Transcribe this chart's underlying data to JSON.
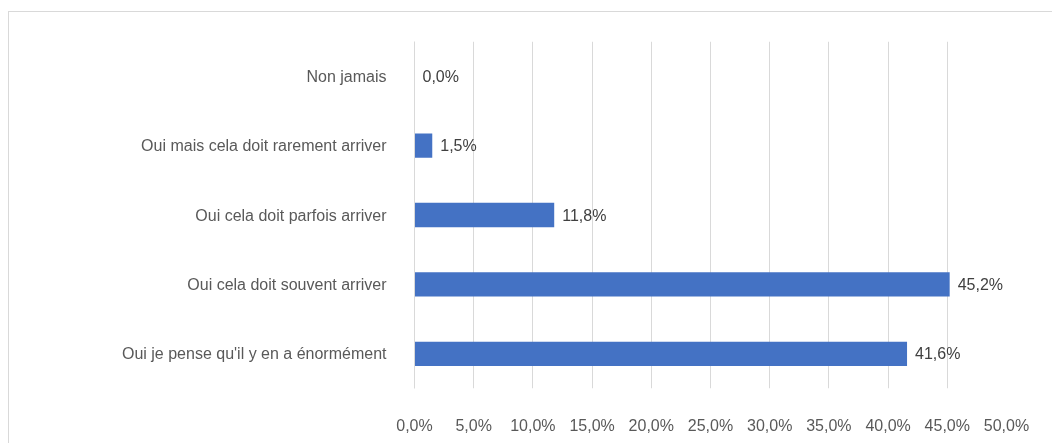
{
  "chart_data": {
    "type": "bar",
    "orientation": "horizontal",
    "categories": [
      "Non jamais",
      "Oui mais cela doit rarement arriver",
      "Oui cela doit parfois arriver",
      "Oui cela doit souvent arriver",
      "Oui je pense qu'il y en a énormément"
    ],
    "values": [
      0.0,
      1.5,
      11.8,
      45.2,
      41.6
    ],
    "color": "#4472c4",
    "value_labels": [
      "0,0%",
      "1,5%",
      "11,8%",
      "45,2%",
      "41,6%"
    ],
    "xlim": [
      0,
      50
    ],
    "xticks": [
      {
        "value": 0,
        "label": "0,0%"
      },
      {
        "value": 5,
        "label": "5,0%"
      },
      {
        "value": 10,
        "label": "10,0%"
      },
      {
        "value": 15,
        "label": "15,0%"
      },
      {
        "value": 20,
        "label": "20,0%"
      },
      {
        "value": 25,
        "label": "25,0%"
      },
      {
        "value": 30,
        "label": "30,0%"
      },
      {
        "value": 35,
        "label": "35,0%"
      },
      {
        "value": 40,
        "label": "40,0%"
      },
      {
        "value": 45,
        "label": "45,0%"
      },
      {
        "value": 50,
        "label": "50,0%"
      }
    ],
    "grid": "x"
  }
}
